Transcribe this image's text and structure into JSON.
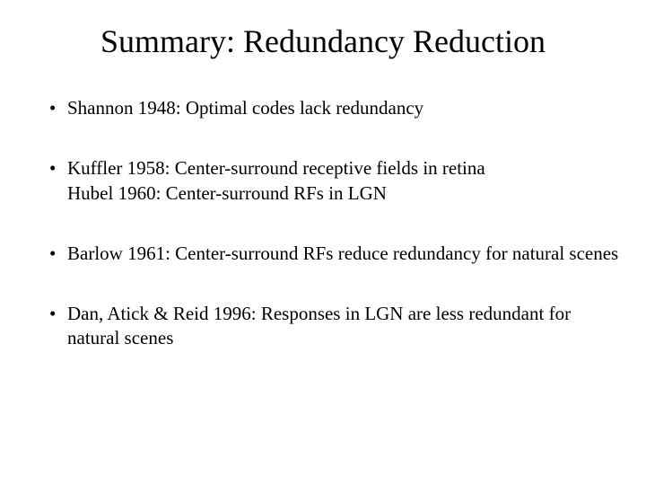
{
  "slide": {
    "title": "Summary: Redundancy Reduction",
    "bullets": [
      {
        "line1": "Shannon 1948: Optimal codes lack redundancy",
        "line2": ""
      },
      {
        "line1": "Kuffler 1958: Center-surround receptive fields in retina",
        "line2": "Hubel 1960: Center-surround RFs in LGN"
      },
      {
        "line1": "Barlow 1961: Center-surround RFs reduce redundancy for natural scenes",
        "line2": ""
      },
      {
        "line1": "Dan, Atick & Reid 1996: Responses in LGN are less redundant for natural scenes",
        "line2": ""
      }
    ],
    "styling": {
      "background_color": "#ffffff",
      "text_color": "#000000",
      "title_fontsize": 36,
      "body_fontsize": 21,
      "font_family": "Times New Roman"
    }
  }
}
